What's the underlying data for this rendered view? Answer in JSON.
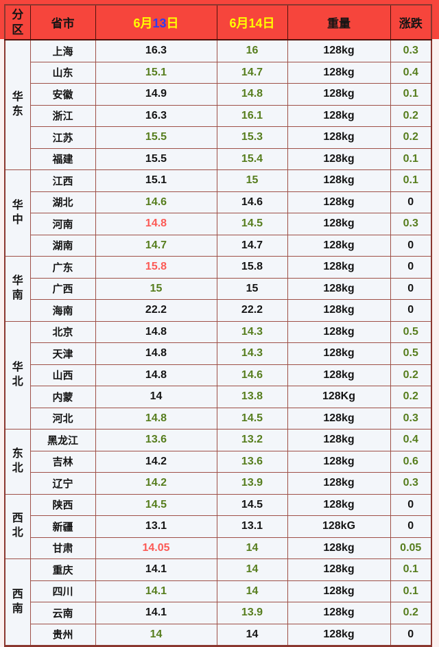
{
  "palette": {
    "header_bg": "#f6453c",
    "page_band": "#f6453c",
    "page_bg": "#fbf1f0",
    "cell_bg": "#f3f6fa",
    "border": "#9e4f46",
    "border_dark": "#4f120d",
    "outer_border": "#8a372f",
    "text_black": "#141414",
    "value_green": "#567d1d",
    "value_red": "#fc5a55",
    "date_yellow": "#ffff00",
    "date_blue": "#2e3cf0"
  },
  "chart_data": {
    "type": "table",
    "columns": [
      "分区",
      "省市",
      "6月13日",
      "6月14日",
      "重量",
      "涨跌"
    ],
    "header_parts": {
      "date1_prefix": "6月",
      "date1_day": "13",
      "date1_suffix": "日",
      "date2": "6月14日"
    },
    "sections": [
      {
        "region": "华东",
        "rows": [
          {
            "province": "上海",
            "d13": "16.3",
            "d13_color": "black",
            "d14": "16",
            "d14_color": "green",
            "weight": "128kg",
            "change": "0.3",
            "change_color": "green"
          },
          {
            "province": "山东",
            "d13": "15.1",
            "d13_color": "green",
            "d14": "14.7",
            "d14_color": "green",
            "weight": "128kg",
            "change": "0.4",
            "change_color": "green"
          },
          {
            "province": "安徽",
            "d13": "14.9",
            "d13_color": "black",
            "d14": "14.8",
            "d14_color": "green",
            "weight": "128kg",
            "change": "0.1",
            "change_color": "green"
          },
          {
            "province": "浙江",
            "d13": "16.3",
            "d13_color": "black",
            "d14": "16.1",
            "d14_color": "green",
            "weight": "128kg",
            "change": "0.2",
            "change_color": "green"
          },
          {
            "province": "江苏",
            "d13": "15.5",
            "d13_color": "green",
            "d14": "15.3",
            "d14_color": "green",
            "weight": "128kg",
            "change": "0.2",
            "change_color": "green"
          },
          {
            "province": "福建",
            "d13": "15.5",
            "d13_color": "black",
            "d14": "15.4",
            "d14_color": "green",
            "weight": "128kg",
            "change": "0.1",
            "change_color": "green"
          }
        ]
      },
      {
        "region": "华中",
        "rows": [
          {
            "province": "江西",
            "d13": "15.1",
            "d13_color": "black",
            "d14": "15",
            "d14_color": "green",
            "weight": "128kg",
            "change": "0.1",
            "change_color": "green"
          },
          {
            "province": "湖北",
            "d13": "14.6",
            "d13_color": "green",
            "d14": "14.6",
            "d14_color": "black",
            "weight": "128kg",
            "change": "0",
            "change_color": "black"
          },
          {
            "province": "河南",
            "d13": "14.8",
            "d13_color": "red",
            "d14": "14.5",
            "d14_color": "green",
            "weight": "128kg",
            "change": "0.3",
            "change_color": "green"
          },
          {
            "province": "湖南",
            "d13": "14.7",
            "d13_color": "green",
            "d14": "14.7",
            "d14_color": "black",
            "weight": "128kg",
            "change": "0",
            "change_color": "black"
          }
        ]
      },
      {
        "region": "华南",
        "rows": [
          {
            "province": "广东",
            "d13": "15.8",
            "d13_color": "red",
            "d14": "15.8",
            "d14_color": "black",
            "weight": "128kg",
            "change": "0",
            "change_color": "black"
          },
          {
            "province": "广西",
            "d13": "15",
            "d13_color": "green",
            "d14": "15",
            "d14_color": "black",
            "weight": "128kg",
            "change": "0",
            "change_color": "black"
          },
          {
            "province": "海南",
            "d13": "22.2",
            "d13_color": "black",
            "d14": "22.2",
            "d14_color": "black",
            "weight": "128kg",
            "change": "0",
            "change_color": "black"
          }
        ]
      },
      {
        "region": "华北",
        "rows": [
          {
            "province": "北京",
            "d13": "14.8",
            "d13_color": "black",
            "d14": "14.3",
            "d14_color": "green",
            "weight": "128kg",
            "change": "0.5",
            "change_color": "green"
          },
          {
            "province": "天津",
            "d13": "14.8",
            "d13_color": "black",
            "d14": "14.3",
            "d14_color": "green",
            "weight": "128kg",
            "change": "0.5",
            "change_color": "green"
          },
          {
            "province": "山西",
            "d13": "14.8",
            "d13_color": "black",
            "d14": "14.6",
            "d14_color": "green",
            "weight": "128kg",
            "change": "0.2",
            "change_color": "green"
          },
          {
            "province": "内蒙",
            "d13": "14",
            "d13_color": "black",
            "d14": "13.8",
            "d14_color": "green",
            "weight": "128Kg",
            "change": "0.2",
            "change_color": "green"
          },
          {
            "province": "河北",
            "d13": "14.8",
            "d13_color": "green",
            "d14": "14.5",
            "d14_color": "green",
            "weight": "128kg",
            "change": "0.3",
            "change_color": "green"
          }
        ]
      },
      {
        "region": "东北",
        "rows": [
          {
            "province": "黑龙江",
            "d13": "13.6",
            "d13_color": "green",
            "d14": "13.2",
            "d14_color": "green",
            "weight": "128kg",
            "change": "0.4",
            "change_color": "green"
          },
          {
            "province": "吉林",
            "d13": "14.2",
            "d13_color": "black",
            "d14": "13.6",
            "d14_color": "green",
            "weight": "128kg",
            "change": "0.6",
            "change_color": "green"
          },
          {
            "province": "辽宁",
            "d13": "14.2",
            "d13_color": "green",
            "d14": "13.9",
            "d14_color": "green",
            "weight": "128kg",
            "change": "0.3",
            "change_color": "green"
          }
        ]
      },
      {
        "region": "西北",
        "rows": [
          {
            "province": "陕西",
            "d13": "14.5",
            "d13_color": "green",
            "d14": "14.5",
            "d14_color": "black",
            "weight": "128kg",
            "change": "0",
            "change_color": "black"
          },
          {
            "province": "新疆",
            "d13": "13.1",
            "d13_color": "black",
            "d14": "13.1",
            "d14_color": "black",
            "weight": "128kG",
            "change": "0",
            "change_color": "black"
          },
          {
            "province": "甘肃",
            "d13": "14.05",
            "d13_color": "red",
            "d14": "14",
            "d14_color": "green",
            "weight": "128kg",
            "change": "0.05",
            "change_color": "green"
          }
        ]
      },
      {
        "region": "西南",
        "rows": [
          {
            "province": "重庆",
            "d13": "14.1",
            "d13_color": "black",
            "d14": "14",
            "d14_color": "green",
            "weight": "128kg",
            "change": "0.1",
            "change_color": "green"
          },
          {
            "province": "四川",
            "d13": "14.1",
            "d13_color": "green",
            "d14": "14",
            "d14_color": "green",
            "weight": "128kg",
            "change": "0.1",
            "change_color": "green"
          },
          {
            "province": "云南",
            "d13": "14.1",
            "d13_color": "black",
            "d14": "13.9",
            "d14_color": "green",
            "weight": "128kg",
            "change": "0.2",
            "change_color": "green"
          },
          {
            "province": "贵州",
            "d13": "14",
            "d13_color": "green",
            "d14": "14",
            "d14_color": "black",
            "weight": "128kg",
            "change": "0",
            "change_color": "black"
          }
        ]
      }
    ]
  }
}
